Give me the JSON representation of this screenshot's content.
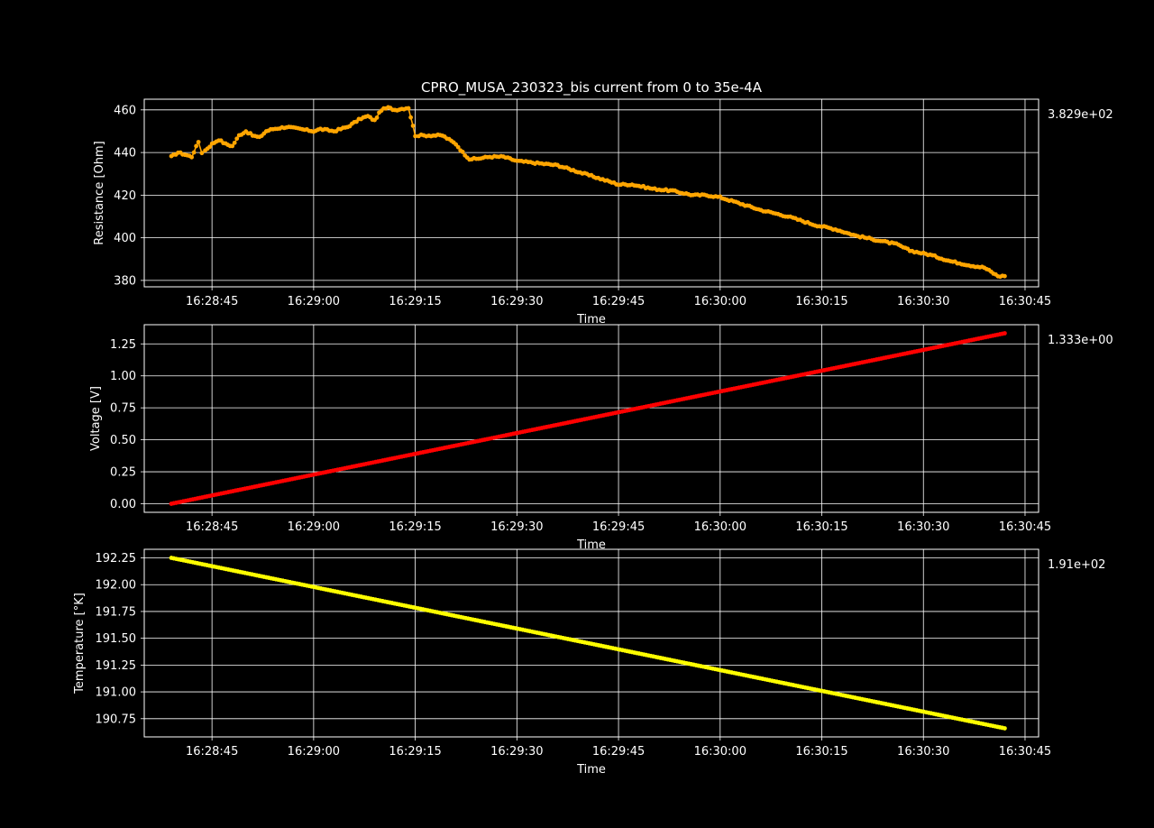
{
  "figure_title": "CPRO_MUSA_230323_bis current from 0 to 35e-4A",
  "colors": {
    "background": "#000000",
    "foreground": "#ffffff",
    "grid": "#ffffff",
    "resistance": "#ffa500",
    "voltage": "#ff0000",
    "temperature": "#ffff00"
  },
  "chart_data": [
    {
      "type": "line",
      "marker": "dot",
      "title": "CPRO_MUSA_230323_bis current from 0 to 35e-4A",
      "xlabel": "Time",
      "ylabel": "Resistance [Ohm]",
      "side_label": "3.829e+02",
      "grid": true,
      "x_ticks": [
        "16:28:45",
        "16:29:00",
        "16:29:15",
        "16:29:30",
        "16:29:45",
        "16:30:00",
        "16:30:15",
        "16:30:30",
        "16:30:45"
      ],
      "xlim": [
        "16:28:35",
        "16:30:47"
      ],
      "y_ticks": [
        "380",
        "400",
        "420",
        "440",
        "460"
      ],
      "ylim": [
        377,
        465
      ],
      "series": [
        {
          "color": "#ffa500",
          "x": [
            "16:28:39",
            "16:28:40",
            "16:28:41",
            "16:28:42",
            "16:28:43",
            "16:28:43.5",
            "16:28:44",
            "16:28:45",
            "16:28:46",
            "16:28:47",
            "16:28:48",
            "16:28:49",
            "16:28:50",
            "16:28:51",
            "16:28:52",
            "16:28:53",
            "16:28:54",
            "16:28:56",
            "16:28:58",
            "16:29:00",
            "16:29:01",
            "16:29:03",
            "16:29:05",
            "16:29:06",
            "16:29:07",
            "16:29:08",
            "16:29:09",
            "16:29:10",
            "16:29:11",
            "16:29:12",
            "16:29:14",
            "16:29:15",
            "16:29:15.5",
            "16:29:17",
            "16:29:19",
            "16:29:21",
            "16:29:22",
            "16:29:23",
            "16:29:24",
            "16:29:26",
            "16:29:28",
            "16:29:30",
            "16:29:33",
            "16:29:36",
            "16:29:39",
            "16:29:42",
            "16:29:45",
            "16:29:47",
            "16:29:50",
            "16:29:53",
            "16:29:56",
            "16:29:58",
            "16:30:00",
            "16:30:03",
            "16:30:06",
            "16:30:10",
            "16:30:14",
            "16:30:17",
            "16:30:20",
            "16:30:23",
            "16:30:26",
            "16:30:28",
            "16:30:31",
            "16:30:34",
            "16:30:37",
            "16:30:39",
            "16:30:41",
            "16:30:42"
          ],
          "values": [
            438,
            440,
            439,
            438,
            445,
            440,
            441,
            444,
            446,
            444,
            443,
            448,
            450,
            448,
            447,
            450,
            451,
            452,
            451,
            450,
            451,
            450,
            452,
            454,
            456,
            457,
            455,
            460,
            461,
            460,
            461,
            448,
            448,
            448,
            448,
            444,
            440,
            437,
            437,
            438,
            438,
            436,
            435,
            434,
            431,
            428,
            425,
            425,
            423,
            422,
            420,
            420,
            419,
            416,
            413,
            410,
            406,
            404,
            401,
            399,
            397,
            394,
            392,
            389,
            387,
            386,
            382,
            382
          ]
        }
      ]
    },
    {
      "type": "line",
      "marker": "dot",
      "xlabel": "Time",
      "ylabel": "Voltage [V]",
      "side_label": "1.333e+00",
      "grid": true,
      "x_ticks": [
        "16:28:45",
        "16:29:00",
        "16:29:15",
        "16:29:30",
        "16:29:45",
        "16:30:00",
        "16:30:15",
        "16:30:30",
        "16:30:45"
      ],
      "xlim": [
        "16:28:35",
        "16:30:47"
      ],
      "y_ticks": [
        "0.00",
        "0.25",
        "0.50",
        "0.75",
        "1.00",
        "1.25"
      ],
      "ylim": [
        -0.067,
        1.4
      ],
      "series": [
        {
          "color": "#ff0000",
          "x": [
            "16:28:39",
            "16:30:42"
          ],
          "values": [
            0.0,
            1.333
          ]
        }
      ]
    },
    {
      "type": "line",
      "marker": "dot",
      "xlabel": "Time",
      "ylabel": "Temperature [°K]",
      "side_label": "1.91e+02",
      "grid": true,
      "x_ticks": [
        "16:28:45",
        "16:29:00",
        "16:29:15",
        "16:29:30",
        "16:29:45",
        "16:30:00",
        "16:30:15",
        "16:30:30",
        "16:30:45"
      ],
      "xlim": [
        "16:28:35",
        "16:30:47"
      ],
      "y_ticks": [
        "190.75",
        "191.00",
        "191.25",
        "191.50",
        "191.75",
        "192.00",
        "192.25"
      ],
      "ylim": [
        190.58,
        192.33
      ],
      "series": [
        {
          "color": "#ffff00",
          "x": [
            "16:28:39",
            "16:30:42"
          ],
          "values": [
            192.25,
            190.66
          ]
        }
      ]
    }
  ]
}
